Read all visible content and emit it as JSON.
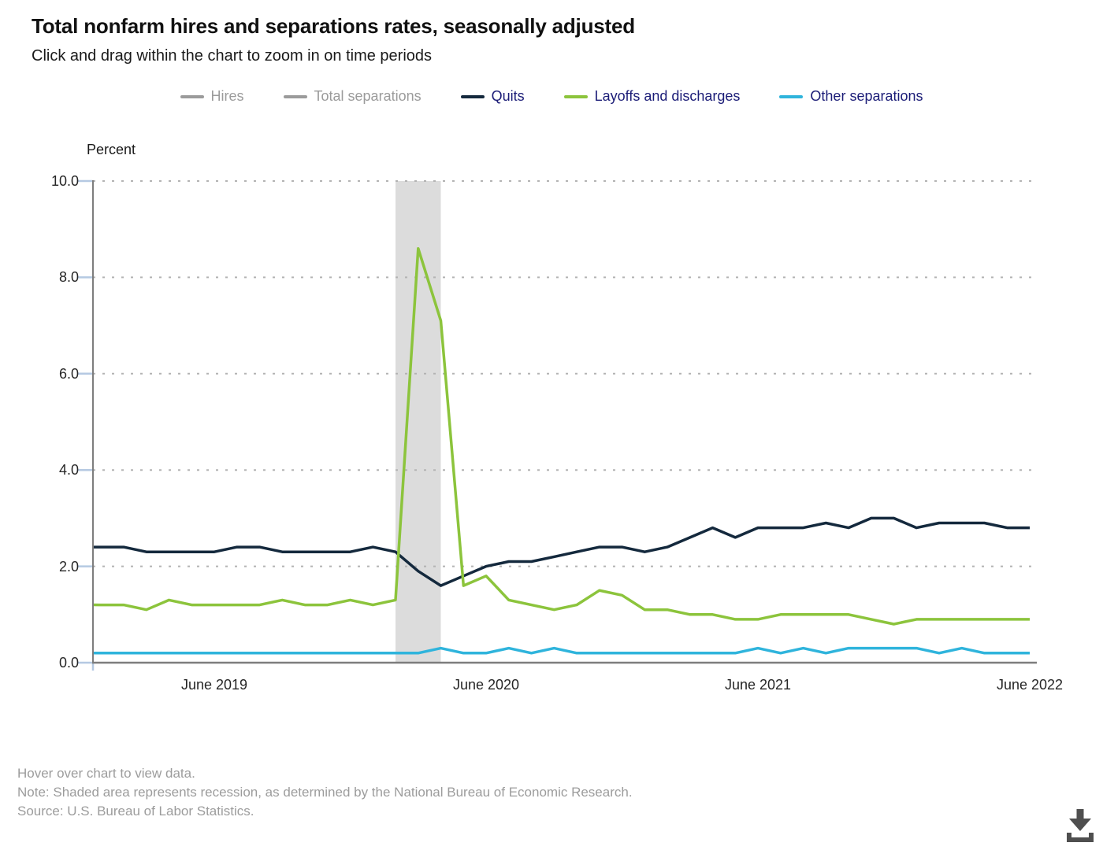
{
  "header": {
    "title": "Total nonfarm hires and separations rates, seasonally adjusted",
    "subtitle": "Click and drag within the chart to zoom in on time periods"
  },
  "legend": {
    "active_text_color": "#1b1c77",
    "inactive_color": "#9b9b9b",
    "items": [
      {
        "label": "Hires",
        "color": "#9b9b9b",
        "active": false
      },
      {
        "label": "Total separations",
        "color": "#9b9b9b",
        "active": false
      },
      {
        "label": "Quits",
        "color": "#14293d",
        "active": true
      },
      {
        "label": "Layoffs and discharges",
        "color": "#8cc43c",
        "active": true
      },
      {
        "label": "Other separations",
        "color": "#2fb4dc",
        "active": true
      }
    ]
  },
  "chart": {
    "y_axis_title": "Percent"
  },
  "chart_data": {
    "type": "line",
    "title": "Total nonfarm hires and separations rates, seasonally adjusted",
    "subtitle": "Click and drag within the chart to zoom in on time periods",
    "xlabel": "",
    "ylabel": "Percent",
    "ylim": [
      0,
      10
    ],
    "y_ticks": [
      "0.0",
      "2.0",
      "4.0",
      "6.0",
      "8.0",
      "10.0"
    ],
    "x_tick_labels": [
      {
        "index": 5,
        "label": "June 2019"
      },
      {
        "index": 17,
        "label": "June 2020"
      },
      {
        "index": 29,
        "label": "June 2021"
      },
      {
        "index": 41,
        "label": "June 2022"
      }
    ],
    "grid": "dotted-horizontal",
    "legend_position": "top",
    "recession_band": {
      "from": "Feb 2020",
      "to": "Apr 2020",
      "color": "#dcdcdc"
    },
    "colors": {
      "grid": "#b3b3b3",
      "axis": "#7d7d7d",
      "tick": "#b5c9e2"
    },
    "categories": [
      "Jan 2019",
      "Feb 2019",
      "Mar 2019",
      "Apr 2019",
      "May 2019",
      "Jun 2019",
      "Jul 2019",
      "Aug 2019",
      "Sep 2019",
      "Oct 2019",
      "Nov 2019",
      "Dec 2019",
      "Jan 2020",
      "Feb 2020",
      "Mar 2020",
      "Apr 2020",
      "May 2020",
      "Jun 2020",
      "Jul 2020",
      "Aug 2020",
      "Sep 2020",
      "Oct 2020",
      "Nov 2020",
      "Dec 2020",
      "Jan 2021",
      "Feb 2021",
      "Mar 2021",
      "Apr 2021",
      "May 2021",
      "Jun 2021",
      "Jul 2021",
      "Aug 2021",
      "Sep 2021",
      "Oct 2021",
      "Nov 2021",
      "Dec 2021",
      "Jan 2022",
      "Feb 2022",
      "Mar 2022",
      "Apr 2022",
      "May 2022",
      "Jun 2022"
    ],
    "series": [
      {
        "name": "Hires",
        "color": "#9b9b9b",
        "visible": false
      },
      {
        "name": "Total separations",
        "color": "#9b9b9b",
        "visible": false
      },
      {
        "name": "Quits",
        "color": "#14293d",
        "visible": true,
        "values": [
          2.4,
          2.4,
          2.3,
          2.3,
          2.3,
          2.3,
          2.4,
          2.4,
          2.3,
          2.3,
          2.3,
          2.3,
          2.4,
          2.3,
          1.9,
          1.6,
          1.8,
          2.0,
          2.1,
          2.1,
          2.2,
          2.3,
          2.4,
          2.4,
          2.3,
          2.4,
          2.6,
          2.8,
          2.6,
          2.8,
          2.8,
          2.8,
          2.9,
          2.8,
          3.0,
          3.0,
          2.8,
          2.9,
          2.9,
          2.9,
          2.8,
          2.8
        ]
      },
      {
        "name": "Layoffs and discharges",
        "color": "#8cc43c",
        "visible": true,
        "values": [
          1.2,
          1.2,
          1.1,
          1.3,
          1.2,
          1.2,
          1.2,
          1.2,
          1.3,
          1.2,
          1.2,
          1.3,
          1.2,
          1.3,
          8.6,
          7.1,
          1.6,
          1.8,
          1.3,
          1.2,
          1.1,
          1.2,
          1.5,
          1.4,
          1.1,
          1.1,
          1.0,
          1.0,
          0.9,
          0.9,
          1.0,
          1.0,
          1.0,
          1.0,
          0.9,
          0.8,
          0.9,
          0.9,
          0.9,
          0.9,
          0.9,
          0.9
        ]
      },
      {
        "name": "Other separations",
        "color": "#2fb4dc",
        "visible": true,
        "values": [
          0.2,
          0.2,
          0.2,
          0.2,
          0.2,
          0.2,
          0.2,
          0.2,
          0.2,
          0.2,
          0.2,
          0.2,
          0.2,
          0.2,
          0.2,
          0.3,
          0.2,
          0.2,
          0.3,
          0.2,
          0.3,
          0.2,
          0.2,
          0.2,
          0.2,
          0.2,
          0.2,
          0.2,
          0.2,
          0.3,
          0.2,
          0.3,
          0.2,
          0.3,
          0.3,
          0.3,
          0.3,
          0.2,
          0.3,
          0.2,
          0.2,
          0.2
        ]
      }
    ]
  },
  "footer": {
    "lines": [
      "Hover over chart to view data.",
      "Note: Shaded area represents recession, as determined by the National Bureau of Economic Research.",
      "Source: U.S. Bureau of Labor Statistics."
    ]
  },
  "icons": {
    "download": "download-arrow-tray"
  }
}
